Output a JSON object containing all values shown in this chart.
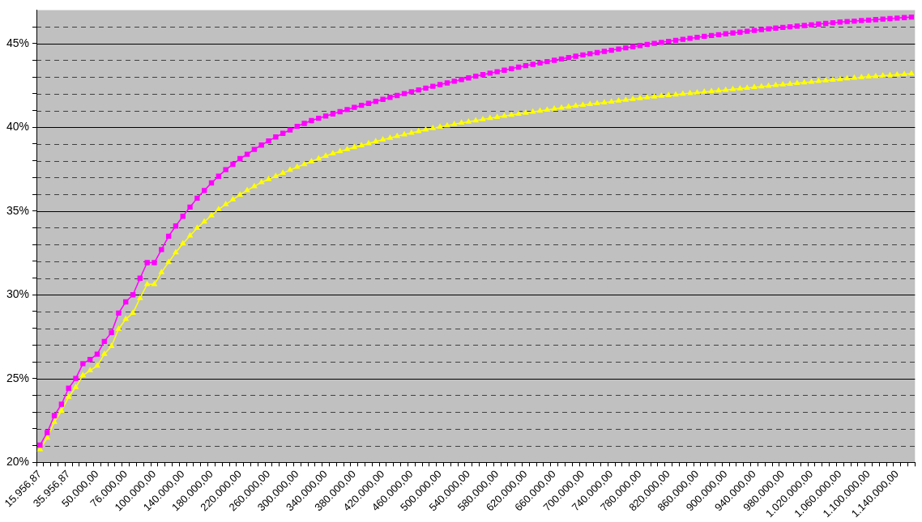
{
  "chart_data": {
    "type": "line",
    "categories": [
      "15.956,87",
      null,
      null,
      null,
      "35.956,87",
      null,
      null,
      null,
      "50.000,00",
      null,
      null,
      null,
      "76.000,00",
      null,
      null,
      null,
      "100.000,00",
      null,
      null,
      null,
      "140.000,00",
      null,
      null,
      null,
      "180.000,00",
      null,
      null,
      null,
      "220.000,00",
      null,
      null,
      null,
      "260.000,00",
      null,
      null,
      null,
      "300.000,00",
      null,
      null,
      null,
      "340.000,00",
      null,
      null,
      null,
      "380.000,00",
      null,
      null,
      null,
      "420.000,00",
      null,
      null,
      null,
      "460.000,00",
      null,
      null,
      null,
      "500.000,00",
      null,
      null,
      null,
      "540.000,00",
      null,
      null,
      null,
      "580.000,00",
      null,
      null,
      null,
      "620.000,00",
      null,
      null,
      null,
      "660.000,00",
      null,
      null,
      null,
      "700.000,00",
      null,
      null,
      null,
      "740.000,00",
      null,
      null,
      null,
      "780.000,00",
      null,
      null,
      null,
      "820.000,00",
      null,
      null,
      null,
      "860.000,00",
      null,
      null,
      null,
      "900.000,00",
      null,
      null,
      null,
      "940.000,00",
      null,
      null,
      null,
      "980.000,00",
      null,
      null,
      null,
      "1.020.000,00",
      null,
      null,
      null,
      "1.060.000,00",
      null,
      null,
      null,
      "1.100.000,00",
      null,
      null,
      null,
      "1.140.000,00",
      null,
      null
    ],
    "series": [
      {
        "color": "#ff00ff",
        "marker": "square",
        "values": [
          21.03,
          21.78,
          22.79,
          23.47,
          24.42,
          25.01,
          25.89,
          26.14,
          26.46,
          27.22,
          27.75,
          28.91,
          29.58,
          30.0,
          30.99,
          31.92,
          31.92,
          32.7,
          33.5,
          34.11,
          34.69,
          35.24,
          35.77,
          36.23,
          36.68,
          37.08,
          37.47,
          37.79,
          38.13,
          38.39,
          38.68,
          38.94,
          39.19,
          39.42,
          39.64,
          39.84,
          40.06,
          40.23,
          40.4,
          40.54,
          40.67,
          40.8,
          40.93,
          41.06,
          41.19,
          41.31,
          41.43,
          41.55,
          41.67,
          41.79,
          41.9,
          42.01,
          42.12,
          42.23,
          42.34,
          42.45,
          42.55,
          42.65,
          42.75,
          42.85,
          42.95,
          43.05,
          43.14,
          43.23,
          43.32,
          43.41,
          43.5,
          43.59,
          43.68,
          43.76,
          43.84,
          43.92,
          44.0,
          44.08,
          44.16,
          44.24,
          44.32,
          44.39,
          44.46,
          44.53,
          44.6,
          44.67,
          44.74,
          44.81,
          44.88,
          44.95,
          45.01,
          45.07,
          45.13,
          45.19,
          45.25,
          45.31,
          45.37,
          45.43,
          45.48,
          45.53,
          45.58,
          45.63,
          45.68,
          45.73,
          45.78,
          45.83,
          45.88,
          45.92,
          45.96,
          46.0,
          46.04,
          46.08,
          46.12,
          46.16,
          46.2,
          46.24,
          46.28,
          46.31,
          46.34,
          46.37,
          46.4,
          46.43,
          46.46,
          46.49,
          46.52,
          46.55,
          46.58
        ]
      },
      {
        "color": "#ffff00",
        "marker": "triangle",
        "values": [
          20.78,
          21.46,
          22.41,
          23.07,
          23.9,
          24.48,
          25.19,
          25.48,
          25.76,
          26.46,
          26.94,
          27.96,
          28.55,
          28.91,
          29.8,
          30.63,
          30.63,
          31.34,
          31.95,
          32.53,
          33.06,
          33.53,
          33.99,
          34.36,
          34.74,
          35.1,
          35.4,
          35.69,
          35.97,
          36.24,
          36.47,
          36.72,
          36.9,
          37.08,
          37.27,
          37.45,
          37.63,
          37.79,
          37.96,
          38.13,
          38.29,
          38.43,
          38.56,
          38.69,
          38.81,
          38.92,
          39.04,
          39.16,
          39.26,
          39.36,
          39.47,
          39.57,
          39.67,
          39.76,
          39.86,
          39.94,
          40.03,
          40.1,
          40.18,
          40.27,
          40.33,
          40.4,
          40.47,
          40.54,
          40.61,
          40.68,
          40.74,
          40.8,
          40.86,
          40.92,
          40.98,
          41.04,
          41.1,
          41.16,
          41.22,
          41.28,
          41.33,
          41.38,
          41.43,
          41.48,
          41.53,
          41.58,
          41.63,
          41.68,
          41.73,
          41.78,
          41.83,
          41.87,
          41.91,
          41.95,
          41.99,
          42.03,
          42.07,
          42.11,
          42.15,
          42.19,
          42.23,
          42.27,
          42.31,
          42.35,
          42.39,
          42.43,
          42.47,
          42.51,
          42.55,
          42.59,
          42.63,
          42.67,
          42.71,
          42.75,
          42.79,
          42.83,
          42.87,
          42.91,
          42.95,
          42.99,
          43.02,
          43.05,
          43.08,
          43.11,
          43.14,
          43.17,
          43.2
        ]
      }
    ],
    "ylim": [
      20,
      47
    ],
    "yticks": [
      {
        "value": 20,
        "label": "20%"
      },
      {
        "value": 21,
        "label": null
      },
      {
        "value": 22,
        "label": null
      },
      {
        "value": 23,
        "label": null
      },
      {
        "value": 24,
        "label": null
      },
      {
        "value": 25,
        "label": "25%"
      },
      {
        "value": 26,
        "label": null
      },
      {
        "value": 27,
        "label": null
      },
      {
        "value": 28,
        "label": null
      },
      {
        "value": 29,
        "label": null
      },
      {
        "value": 30,
        "label": "30%"
      },
      {
        "value": 31,
        "label": null
      },
      {
        "value": 32,
        "label": null
      },
      {
        "value": 33,
        "label": null
      },
      {
        "value": 34,
        "label": null
      },
      {
        "value": 35,
        "label": "35%"
      },
      {
        "value": 36,
        "label": null
      },
      {
        "value": 37,
        "label": null
      },
      {
        "value": 38,
        "label": null
      },
      {
        "value": 39,
        "label": null
      },
      {
        "value": 40,
        "label": "40%"
      },
      {
        "value": 41,
        "label": null
      },
      {
        "value": 42,
        "label": null
      },
      {
        "value": 43,
        "label": null
      },
      {
        "value": 44,
        "label": null
      },
      {
        "value": 45,
        "label": "45%"
      },
      {
        "value": 46,
        "label": null
      }
    ],
    "grid": "y",
    "legend": false,
    "line_style": "solid"
  }
}
